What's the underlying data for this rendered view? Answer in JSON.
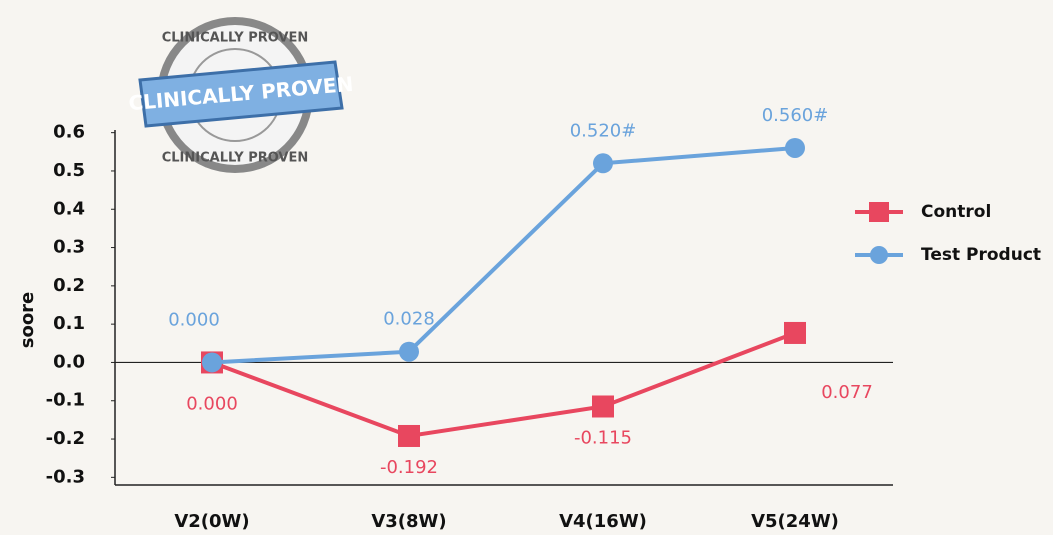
{
  "chart_data": {
    "type": "line",
    "badge": {
      "top": "CLINICALLY PROVEN",
      "banner": "CLINICALLY PROVEN",
      "bottom": "CLINICALLY PROVEN"
    },
    "y_label": "soore",
    "categories": [
      "V2(0W)",
      "V3(8W)",
      "V4(16W)",
      "V5(24W)"
    ],
    "series": [
      {
        "name": "Control",
        "color": "#e8475f",
        "marker": "square",
        "values": [
          0,
          -0.192,
          -0.115,
          0.077
        ],
        "value_labels": [
          "0.000",
          "-0.192",
          "-0.115",
          "0.077"
        ]
      },
      {
        "name": "Test Product",
        "color": "#6aa3dc",
        "marker": "circle",
        "values": [
          0,
          0.028,
          0.52,
          0.56
        ],
        "value_labels": [
          "0.000",
          "0.028",
          "0.520#",
          "0.560#"
        ]
      }
    ],
    "ylim": [
      -0.32,
      0.62
    ],
    "yticks": [
      0.6,
      0.5,
      0.4,
      0.3,
      0.2,
      0.1,
      {
        "value": 0,
        "label": "0.0"
      },
      -0.1,
      -0.2,
      -0.3
    ],
    "legend": "right"
  }
}
